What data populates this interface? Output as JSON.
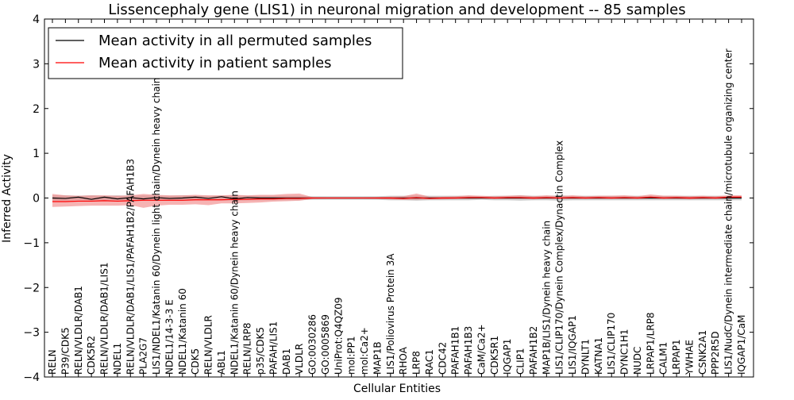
{
  "chart_data": {
    "type": "line",
    "title": "Lissencephaly gene (LIS1) in neuronal migration and development -- 85 samples",
    "xlabel": "Cellular Entities",
    "ylabel": "Inferred Activity",
    "ylim": [
      -4,
      4
    ],
    "yticks": [
      -4,
      -3,
      -2,
      -1,
      0,
      1,
      2,
      3,
      4
    ],
    "ytick_labels": [
      "−4",
      "−3",
      "−2",
      "−1",
      "0",
      "1",
      "2",
      "3",
      "4"
    ],
    "grid": false,
    "legend_position": "top-left",
    "categories": [
      "RELN",
      "P39/CDK5",
      "RELN/VLDLR/DAB1",
      "CDK5R2",
      "RELN/VLDLR/DAB1/LIS1",
      "NDEL1",
      "RELN/VLDLR/DAB1/LIS1/PAFAH1B2/PAFAH1B3",
      "PLA2G7",
      "LIS1/NDEL1/Katanin 60/Dynein light chain/Dynein heavy chain",
      "NDEL1/14-3-3 E",
      "NDEL1/Katanin 60",
      "CDK5",
      "RELN/VLDLR",
      "ABL1",
      "NDEL1/Katanin 60/Dynein heavy chain",
      "RELN/LRP8",
      "p35/CDK5",
      "PAFAH/LIS1",
      "DAB1",
      "VLDLR",
      "GO:0030286",
      "GO:0005869",
      "UniProt:Q4QZ09",
      "mol:PP1",
      "mol:Ca2+",
      "MAP1B",
      "LIS1/Poliovirus Protein 3A",
      "RHOA",
      "LRP8",
      "RAC1",
      "CDC42",
      "PAFAH1B1",
      "PAFAH1B3",
      "CaM/Ca2+",
      "CDK5R1",
      "IQGAP1",
      "CLIP1",
      "PAFAH1B2",
      "MAP1B/LIS1/Dynein heavy chain",
      "LIS1/CLIP170/Dynein Complex/Dynactin Complex",
      "LIS1/IQGAP1",
      "DYNLT1",
      "KATNA1",
      "LIS1/CLIP170",
      "DYNC1H1",
      "NUDC",
      "LRPAP1/LRP8",
      "CALM1",
      "LRPAP1",
      "YWHAE",
      "CSNK2A1",
      "PPP2R5D",
      "LIS1/NudC/Dynein intermediate chain/microtubule organizing center",
      "IQGAP1/CaM"
    ],
    "series": [
      {
        "name": "Mean activity in all permuted samples",
        "color": "#000000",
        "band_color": "#b0b0b0",
        "values": [
          0.0,
          -0.01,
          0.02,
          -0.03,
          0.02,
          -0.02,
          0.01,
          -0.02,
          0.01,
          -0.01,
          0.0,
          0.02,
          -0.01,
          0.03,
          -0.02,
          0.01,
          0.0,
          0.0,
          0.0,
          0.0,
          0.0,
          0.0,
          0.0,
          0.0,
          0.0,
          0.0,
          0.0,
          0.0,
          0.0,
          0.0,
          0.0,
          0.0,
          0.0,
          0.0,
          0.0,
          0.0,
          0.0,
          0.0,
          0.0,
          0.0,
          0.0,
          0.0,
          0.0,
          0.0,
          0.0,
          0.0,
          0.0,
          0.0,
          0.0,
          0.0,
          0.0,
          0.0,
          0.0,
          0.0
        ],
        "lower": [
          -0.06,
          -0.06,
          -0.05,
          -0.06,
          -0.05,
          -0.06,
          -0.05,
          -0.06,
          -0.05,
          -0.05,
          -0.06,
          -0.05,
          -0.05,
          -0.05,
          -0.06,
          -0.05,
          -0.05,
          -0.05,
          -0.05,
          -0.05,
          -0.04,
          -0.04,
          -0.04,
          -0.04,
          -0.04,
          -0.04,
          -0.05,
          -0.05,
          -0.06,
          -0.05,
          -0.05,
          -0.05,
          -0.05,
          -0.04,
          -0.05,
          -0.05,
          -0.06,
          -0.05,
          -0.05,
          -0.06,
          -0.05,
          -0.05,
          -0.05,
          -0.05,
          -0.05,
          -0.05,
          -0.05,
          -0.05,
          -0.05,
          -0.05,
          -0.05,
          -0.05,
          -0.05,
          -0.05
        ],
        "upper": [
          0.06,
          0.06,
          0.05,
          0.06,
          0.05,
          0.06,
          0.05,
          0.06,
          0.05,
          0.05,
          0.06,
          0.05,
          0.05,
          0.05,
          0.06,
          0.05,
          0.05,
          0.05,
          0.05,
          0.05,
          0.04,
          0.04,
          0.04,
          0.04,
          0.04,
          0.04,
          0.05,
          0.05,
          0.06,
          0.05,
          0.05,
          0.05,
          0.05,
          0.04,
          0.05,
          0.05,
          0.06,
          0.05,
          0.05,
          0.06,
          0.05,
          0.05,
          0.05,
          0.05,
          0.05,
          0.05,
          0.05,
          0.05,
          0.05,
          0.05,
          0.05,
          0.05,
          0.05,
          0.05
        ]
      },
      {
        "name": "Mean activity in patient samples",
        "color": "#ff0000",
        "band_color": "#f08080",
        "values": [
          -0.08,
          -0.08,
          -0.07,
          -0.07,
          -0.06,
          -0.07,
          -0.06,
          -0.05,
          -0.05,
          -0.05,
          -0.05,
          -0.04,
          -0.04,
          -0.04,
          -0.03,
          -0.03,
          -0.02,
          -0.02,
          -0.01,
          -0.01,
          0.0,
          0.0,
          0.0,
          0.0,
          0.0,
          0.0,
          0.0,
          -0.01,
          0.01,
          -0.01,
          0.0,
          0.0,
          0.01,
          0.01,
          0.0,
          0.01,
          0.01,
          0.0,
          0.01,
          0.0,
          0.01,
          0.0,
          0.01,
          0.0,
          0.01,
          0.0,
          0.02,
          0.0,
          0.01,
          0.0,
          0.01,
          0.0,
          0.02,
          0.02
        ],
        "lower": [
          -0.2,
          -0.19,
          -0.18,
          -0.17,
          -0.17,
          -0.17,
          -0.16,
          -0.22,
          -0.17,
          -0.15,
          -0.15,
          -0.14,
          -0.16,
          -0.12,
          -0.12,
          -0.11,
          -0.1,
          -0.08,
          -0.07,
          -0.06,
          -0.02,
          -0.01,
          -0.01,
          -0.01,
          -0.01,
          -0.02,
          -0.03,
          -0.04,
          -0.04,
          -0.03,
          -0.03,
          -0.02,
          -0.02,
          -0.01,
          -0.02,
          -0.02,
          -0.02,
          -0.03,
          -0.02,
          -0.02,
          -0.02,
          -0.02,
          -0.02,
          -0.02,
          -0.02,
          -0.02,
          -0.01,
          -0.02,
          -0.02,
          -0.03,
          -0.02,
          -0.02,
          -0.01,
          -0.01
        ],
        "upper": [
          0.09,
          0.06,
          0.05,
          0.06,
          0.06,
          0.05,
          0.06,
          0.09,
          0.07,
          0.06,
          0.06,
          0.07,
          0.06,
          0.06,
          0.07,
          0.06,
          0.07,
          0.07,
          0.09,
          0.1,
          0.02,
          0.01,
          0.01,
          0.01,
          0.01,
          0.02,
          0.03,
          0.04,
          0.1,
          0.03,
          0.03,
          0.04,
          0.06,
          0.05,
          0.04,
          0.05,
          0.06,
          0.04,
          0.06,
          0.04,
          0.06,
          0.04,
          0.05,
          0.05,
          0.06,
          0.04,
          0.08,
          0.05,
          0.05,
          0.04,
          0.05,
          0.04,
          0.06,
          0.06
        ]
      }
    ]
  }
}
